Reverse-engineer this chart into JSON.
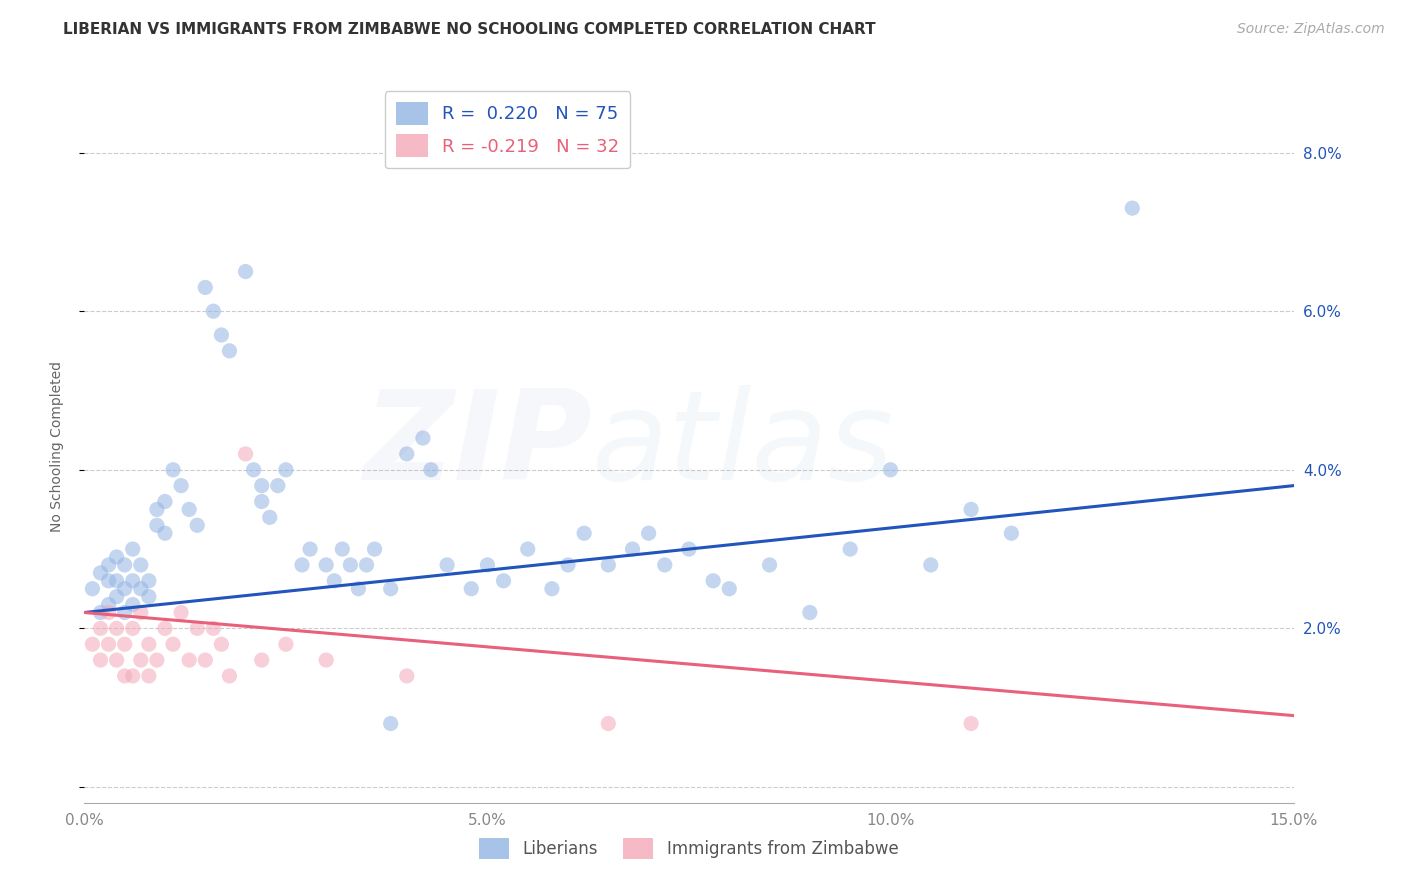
{
  "title": "LIBERIAN VS IMMIGRANTS FROM ZIMBABWE NO SCHOOLING COMPLETED CORRELATION CHART",
  "source": "Source: ZipAtlas.com",
  "ylabel": "No Schooling Completed",
  "xlim": [
    0.0,
    0.15
  ],
  "ylim": [
    -0.002,
    0.088
  ],
  "yticks": [
    0.0,
    0.02,
    0.04,
    0.06,
    0.08
  ],
  "ytick_labels": [
    "",
    "2.0%",
    "4.0%",
    "6.0%",
    "8.0%"
  ],
  "xticks": [
    0.0,
    0.05,
    0.1,
    0.15
  ],
  "xtick_labels": [
    "0.0%",
    "5.0%",
    "10.0%",
    "15.0%"
  ],
  "blue_color": "#92B4E3",
  "pink_color": "#F4A8B8",
  "trend_blue": "#2255BB",
  "trend_pink": "#E8607A",
  "blue_scatter_x": [
    0.001,
    0.002,
    0.002,
    0.003,
    0.003,
    0.003,
    0.004,
    0.004,
    0.004,
    0.005,
    0.005,
    0.005,
    0.006,
    0.006,
    0.006,
    0.007,
    0.007,
    0.008,
    0.008,
    0.009,
    0.009,
    0.01,
    0.01,
    0.011,
    0.012,
    0.013,
    0.014,
    0.015,
    0.016,
    0.017,
    0.018,
    0.02,
    0.021,
    0.022,
    0.022,
    0.023,
    0.024,
    0.025,
    0.027,
    0.028,
    0.03,
    0.031,
    0.032,
    0.033,
    0.034,
    0.035,
    0.036,
    0.038,
    0.04,
    0.042,
    0.043,
    0.045,
    0.048,
    0.05,
    0.052,
    0.055,
    0.058,
    0.06,
    0.062,
    0.065,
    0.068,
    0.07,
    0.072,
    0.075,
    0.078,
    0.08,
    0.085,
    0.09,
    0.095,
    0.1,
    0.105,
    0.11,
    0.115,
    0.13,
    0.038
  ],
  "blue_scatter_y": [
    0.025,
    0.022,
    0.027,
    0.023,
    0.026,
    0.028,
    0.024,
    0.026,
    0.029,
    0.022,
    0.025,
    0.028,
    0.023,
    0.026,
    0.03,
    0.025,
    0.028,
    0.024,
    0.026,
    0.035,
    0.033,
    0.032,
    0.036,
    0.04,
    0.038,
    0.035,
    0.033,
    0.063,
    0.06,
    0.057,
    0.055,
    0.065,
    0.04,
    0.038,
    0.036,
    0.034,
    0.038,
    0.04,
    0.028,
    0.03,
    0.028,
    0.026,
    0.03,
    0.028,
    0.025,
    0.028,
    0.03,
    0.025,
    0.042,
    0.044,
    0.04,
    0.028,
    0.025,
    0.028,
    0.026,
    0.03,
    0.025,
    0.028,
    0.032,
    0.028,
    0.03,
    0.032,
    0.028,
    0.03,
    0.026,
    0.025,
    0.028,
    0.022,
    0.03,
    0.04,
    0.028,
    0.035,
    0.032,
    0.073,
    0.008
  ],
  "pink_scatter_x": [
    0.001,
    0.002,
    0.002,
    0.003,
    0.003,
    0.004,
    0.004,
    0.005,
    0.005,
    0.006,
    0.006,
    0.007,
    0.007,
    0.008,
    0.008,
    0.009,
    0.01,
    0.011,
    0.012,
    0.013,
    0.014,
    0.015,
    0.016,
    0.017,
    0.018,
    0.02,
    0.022,
    0.025,
    0.03,
    0.04,
    0.065,
    0.11
  ],
  "pink_scatter_y": [
    0.018,
    0.02,
    0.016,
    0.022,
    0.018,
    0.016,
    0.02,
    0.014,
    0.018,
    0.014,
    0.02,
    0.016,
    0.022,
    0.018,
    0.014,
    0.016,
    0.02,
    0.018,
    0.022,
    0.016,
    0.02,
    0.016,
    0.02,
    0.018,
    0.014,
    0.042,
    0.016,
    0.018,
    0.016,
    0.014,
    0.008,
    0.008
  ],
  "blue_trend_x": [
    0.0,
    0.15
  ],
  "blue_trend_y": [
    0.022,
    0.038
  ],
  "pink_trend_x": [
    0.0,
    0.15
  ],
  "pink_trend_y": [
    0.022,
    0.009
  ],
  "background_color": "#ffffff",
  "grid_color": "#cccccc",
  "title_fontsize": 11,
  "label_fontsize": 10,
  "tick_fontsize": 11,
  "source_fontsize": 10,
  "scatter_size": 120,
  "scatter_alpha": 0.55,
  "watermark_zip": "ZIP",
  "watermark_atlas": "atlas",
  "watermark_alpha": 0.08
}
